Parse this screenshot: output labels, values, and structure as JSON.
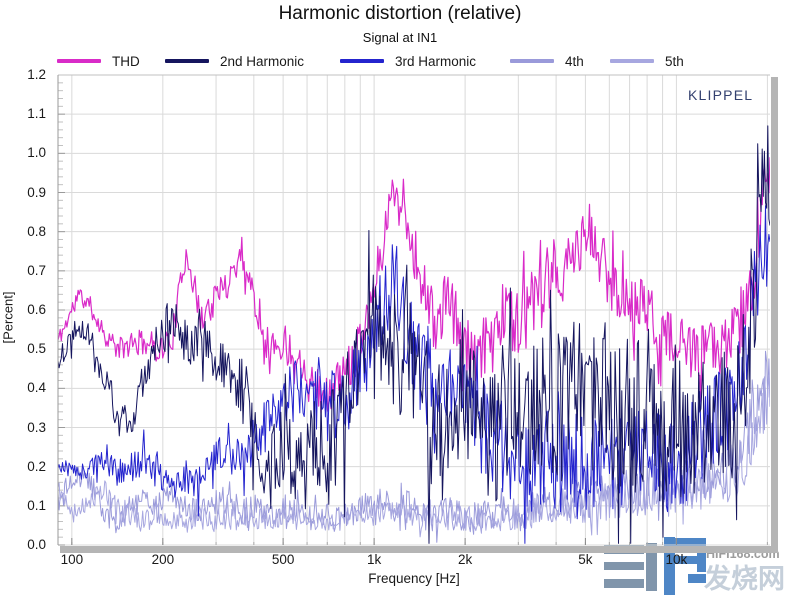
{
  "title": "Harmonic distortion (relative)",
  "subtitle": "Signal at IN1",
  "brand": "KLIPPEL",
  "watermark": {
    "site": "HIFI168.com",
    "cn": "发烧网"
  },
  "colors": {
    "grid": "#dadada",
    "axis_line": "#9a9a9a",
    "frame_bar": "#b5b5b5",
    "minor_tick": "#c2c2c2",
    "text": "#1a1a1a",
    "klippel_blue": "#33406f",
    "watermark_glyph_grey": "#8095ab",
    "watermark_glyph_blue": "#4e86c6",
    "watermark_site_grey": "#9c9c9c",
    "watermark_cn_light": "#c5cfda",
    "thd": "#d92bc8",
    "harmonic2": "#15155e",
    "harmonic3": "#2424ce",
    "harmonic4": "#9a9ada",
    "harmonic5": "#a7a7e0"
  },
  "legend": {
    "items": [
      {
        "id": "thd",
        "label": "THD",
        "color": "#d92bc8"
      },
      {
        "id": "h2",
        "label": "2nd Harmonic",
        "color": "#15155e"
      },
      {
        "id": "h3",
        "label": "3rd Harmonic",
        "color": "#2424ce"
      },
      {
        "id": "h4",
        "label": "4th",
        "color": "#9a9ada"
      },
      {
        "id": "h5",
        "label": "5th",
        "color": "#a7a7e0"
      }
    ]
  },
  "axes": {
    "x": {
      "label": "Frequency [Hz]",
      "scale": "log",
      "min_hz": 90,
      "max_hz": 20400,
      "ticks": [
        {
          "v": 100,
          "label": "100"
        },
        {
          "v": 200,
          "label": "200"
        },
        {
          "v": 500,
          "label": "500"
        },
        {
          "v": 1000,
          "label": "1k"
        },
        {
          "v": 2000,
          "label": "2k"
        },
        {
          "v": 5000,
          "label": "5k"
        },
        {
          "v": 10000,
          "label": "10k"
        }
      ],
      "grid_freqs": [
        100,
        200,
        300,
        400,
        500,
        600,
        700,
        800,
        900,
        1000,
        2000,
        3000,
        4000,
        5000,
        6000,
        7000,
        8000,
        9000,
        10000,
        20000
      ]
    },
    "y": {
      "label": "[Percent]",
      "min": 0.0,
      "max": 1.2,
      "step": 0.1,
      "minor_step": 0.02,
      "ticks": [
        {
          "v": 0.0,
          "label": "0.0"
        },
        {
          "v": 0.1,
          "label": "0.1"
        },
        {
          "v": 0.2,
          "label": "0.2"
        },
        {
          "v": 0.3,
          "label": "0.3"
        },
        {
          "v": 0.4,
          "label": "0.4"
        },
        {
          "v": 0.5,
          "label": "0.5"
        },
        {
          "v": 0.6,
          "label": "0.6"
        },
        {
          "v": 0.7,
          "label": "0.7"
        },
        {
          "v": 0.8,
          "label": "0.8"
        },
        {
          "v": 0.9,
          "label": "0.9"
        },
        {
          "v": 1.0,
          "label": "1.0"
        },
        {
          "v": 1.1,
          "label": "1.1"
        },
        {
          "v": 1.2,
          "label": "1.2"
        }
      ]
    }
  },
  "chart_data": {
    "type": "line",
    "xlabel": "Frequency [Hz]",
    "ylabel": "[Percent]",
    "xscale": "log",
    "xlim": [
      90,
      20400
    ],
    "ylim": [
      0,
      1.2
    ],
    "grid": true,
    "legend_position": "top",
    "x_anchors_hz": [
      87,
      95,
      105,
      115,
      128,
      142,
      158,
      175,
      195,
      215,
      240,
      265,
      295,
      330,
      365,
      405,
      450,
      500,
      555,
      615,
      685,
      760,
      845,
      940,
      1040,
      1160,
      1290,
      1430,
      1590,
      1770,
      1960,
      2180,
      2420,
      2690,
      2990,
      3320,
      3690,
      4100,
      4560,
      5070,
      5630,
      6260,
      6950,
      7730,
      8590,
      9540,
      10600,
      11800,
      13100,
      14600,
      16200,
      18000,
      19600
    ],
    "noise_freqs": [
      100,
      300,
      800,
      1500,
      3000,
      8000,
      20000
    ],
    "series": [
      {
        "name": "THD",
        "color": "#d92bc8",
        "seed": 11,
        "width": 1.2,
        "values": [
          0.5,
          0.56,
          0.64,
          0.61,
          0.54,
          0.5,
          0.51,
          0.52,
          0.5,
          0.53,
          0.76,
          0.58,
          0.62,
          0.68,
          0.75,
          0.62,
          0.5,
          0.52,
          0.48,
          0.44,
          0.37,
          0.42,
          0.47,
          0.58,
          0.72,
          0.92,
          0.82,
          0.68,
          0.56,
          0.63,
          0.52,
          0.45,
          0.54,
          0.6,
          0.57,
          0.61,
          0.64,
          0.68,
          0.73,
          0.8,
          0.73,
          0.66,
          0.61,
          0.62,
          0.56,
          0.52,
          0.5,
          0.48,
          0.5,
          0.52,
          0.55,
          0.68,
          0.92
        ],
        "noise": [
          0.015,
          0.03,
          0.035,
          0.05,
          0.06,
          0.05,
          0.05
        ]
      },
      {
        "name": "2nd Harmonic",
        "color": "#15155e",
        "seed": 22,
        "width": 1.0,
        "values": [
          0.44,
          0.5,
          0.57,
          0.53,
          0.43,
          0.33,
          0.29,
          0.45,
          0.54,
          0.57,
          0.52,
          0.55,
          0.47,
          0.42,
          0.4,
          0.3,
          0.16,
          0.28,
          0.2,
          0.32,
          0.22,
          0.28,
          0.42,
          0.5,
          0.55,
          0.46,
          0.54,
          0.4,
          0.25,
          0.35,
          0.44,
          0.3,
          0.25,
          0.35,
          0.3,
          0.34,
          0.4,
          0.35,
          0.4,
          0.35,
          0.4,
          0.35,
          0.3,
          0.34,
          0.3,
          0.28,
          0.3,
          0.28,
          0.3,
          0.32,
          0.38,
          0.62,
          0.95
        ],
        "noise": [
          0.02,
          0.05,
          0.1,
          0.13,
          0.13,
          0.13,
          0.12
        ]
      },
      {
        "name": "3rd Harmonic",
        "color": "#2424ce",
        "seed": 33,
        "width": 1.0,
        "values": [
          0.19,
          0.2,
          0.18,
          0.2,
          0.22,
          0.18,
          0.2,
          0.22,
          0.18,
          0.15,
          0.18,
          0.15,
          0.2,
          0.25,
          0.22,
          0.28,
          0.3,
          0.35,
          0.4,
          0.34,
          0.4,
          0.34,
          0.4,
          0.48,
          0.58,
          0.7,
          0.54,
          0.44,
          0.34,
          0.4,
          0.42,
          0.3,
          0.28,
          0.25,
          0.22,
          0.2,
          0.22,
          0.2,
          0.22,
          0.2,
          0.22,
          0.2,
          0.22,
          0.25,
          0.22,
          0.2,
          0.22,
          0.27,
          0.3,
          0.35,
          0.44,
          0.62,
          0.78
        ],
        "noise": [
          0.015,
          0.04,
          0.06,
          0.08,
          0.08,
          0.08,
          0.08
        ]
      },
      {
        "name": "4th",
        "color": "#9a9ada",
        "seed": 44,
        "width": 1.0,
        "values": [
          0.1,
          0.13,
          0.18,
          0.16,
          0.08,
          0.05,
          0.1,
          0.12,
          0.1,
          0.13,
          0.1,
          0.08,
          0.1,
          0.12,
          0.08,
          0.1,
          0.08,
          0.1,
          0.08,
          0.07,
          0.08,
          0.07,
          0.08,
          0.1,
          0.12,
          0.1,
          0.1,
          0.08,
          0.07,
          0.08,
          0.08,
          0.07,
          0.08,
          0.08,
          0.08,
          0.09,
          0.1,
          0.1,
          0.12,
          0.12,
          0.13,
          0.13,
          0.14,
          0.15,
          0.16,
          0.15,
          0.16,
          0.17,
          0.18,
          0.2,
          0.24,
          0.33,
          0.42
        ],
        "noise": [
          0.02,
          0.025,
          0.02,
          0.03,
          0.03,
          0.04,
          0.05
        ]
      },
      {
        "name": "5th",
        "color": "#a7a7e0",
        "seed": 55,
        "width": 1.0,
        "values": [
          0.17,
          0.12,
          0.08,
          0.12,
          0.14,
          0.1,
          0.07,
          0.06,
          0.08,
          0.07,
          0.06,
          0.07,
          0.06,
          0.07,
          0.06,
          0.07,
          0.06,
          0.07,
          0.06,
          0.06,
          0.06,
          0.06,
          0.07,
          0.08,
          0.08,
          0.09,
          0.08,
          0.07,
          0.06,
          0.07,
          0.07,
          0.06,
          0.07,
          0.07,
          0.07,
          0.08,
          0.08,
          0.09,
          0.1,
          0.1,
          0.11,
          0.11,
          0.12,
          0.13,
          0.13,
          0.12,
          0.14,
          0.15,
          0.16,
          0.17,
          0.2,
          0.27,
          0.36
        ],
        "noise": [
          0.02,
          0.02,
          0.015,
          0.02,
          0.025,
          0.035,
          0.05
        ]
      }
    ]
  }
}
